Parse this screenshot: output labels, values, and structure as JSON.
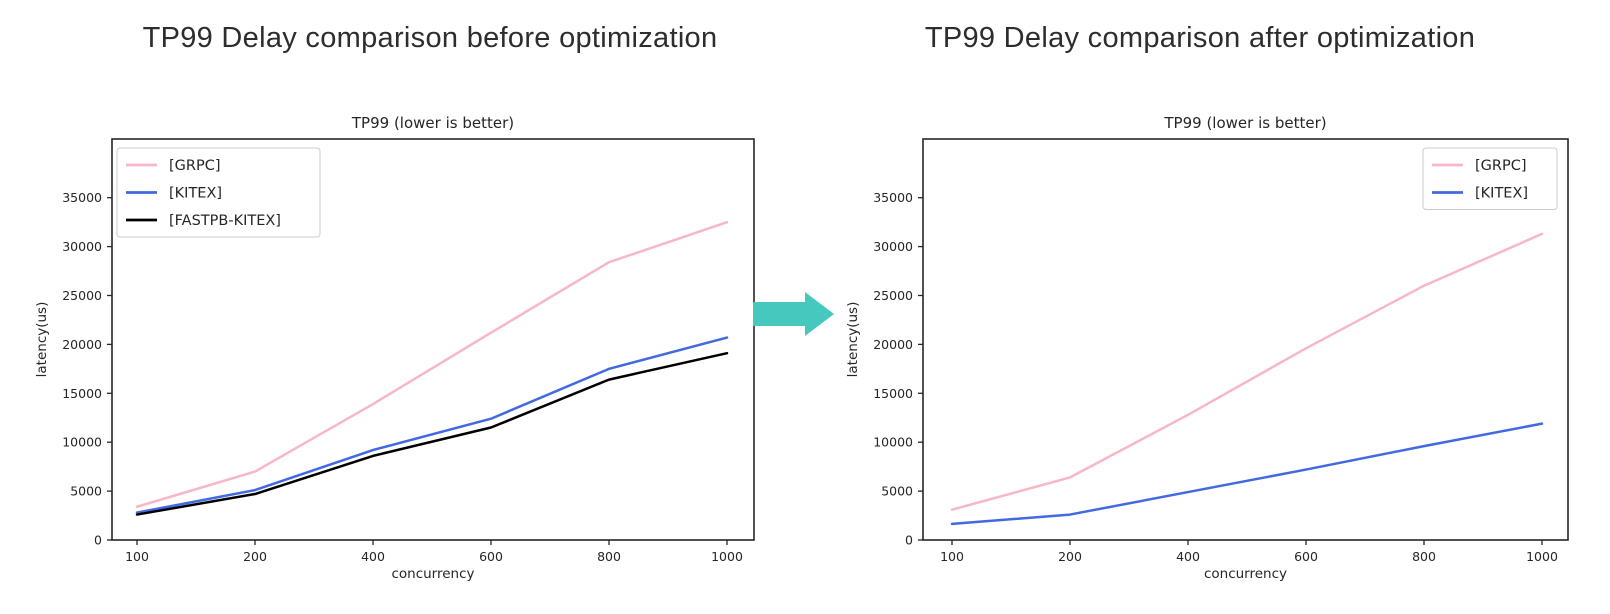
{
  "page": {
    "background": "#ffffff"
  },
  "panels": [
    {
      "heading": "TP99 Delay comparison before optimization"
    },
    {
      "heading": "TP99 Delay comparison after optimization"
    }
  ],
  "arrow": {
    "color": "#47C8BF",
    "direction": "right"
  },
  "chart_data": [
    {
      "type": "line",
      "title": "TP99 (lower is better)",
      "xlabel": "concurrency",
      "ylabel": "latency(us)",
      "categories": [
        "100",
        "200",
        "400",
        "600",
        "800",
        "1000"
      ],
      "series": [
        {
          "name": "[GRPC]",
          "color": "#F8B7C6",
          "values": [
            3400,
            7000,
            13900,
            21200,
            28400,
            32500
          ]
        },
        {
          "name": "[KITEX]",
          "color": "#4169E1",
          "values": [
            2800,
            5100,
            9200,
            12400,
            17500,
            20700
          ]
        },
        {
          "name": "[FASTPB-KITEX]",
          "color": "#000000",
          "values": [
            2600,
            4700,
            8600,
            11500,
            16400,
            19100
          ]
        }
      ],
      "y_ticks": [
        0,
        5000,
        10000,
        15000,
        20000,
        25000,
        30000,
        35000
      ],
      "ylim": [
        0,
        41000
      ],
      "grid": false,
      "legend_position": "upper-left"
    },
    {
      "type": "line",
      "title": "TP99 (lower is better)",
      "xlabel": "concurrency",
      "ylabel": "latency(us)",
      "categories": [
        "100",
        "200",
        "400",
        "600",
        "800",
        "1000"
      ],
      "series": [
        {
          "name": "[GRPC]",
          "color": "#F8B7C6",
          "values": [
            3100,
            6400,
            12800,
            19600,
            26000,
            31300
          ]
        },
        {
          "name": "[KITEX]",
          "color": "#4169E1",
          "values": [
            1650,
            2600,
            4900,
            7200,
            9600,
            11900
          ]
        }
      ],
      "y_ticks": [
        0,
        5000,
        10000,
        15000,
        20000,
        25000,
        30000,
        35000
      ],
      "ylim": [
        0,
        41000
      ],
      "grid": false,
      "legend_position": "upper-right"
    }
  ]
}
